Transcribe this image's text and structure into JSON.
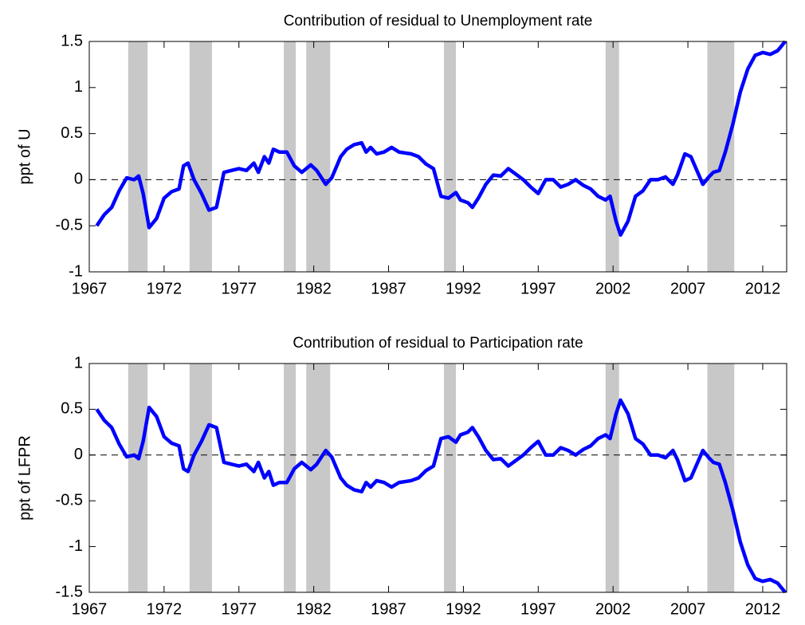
{
  "chart_data": [
    {
      "type": "line",
      "title": "Contribution of residual to Unemployment rate",
      "y_label": "ppt of U",
      "x": [
        1967.5,
        1968,
        1968.5,
        1969,
        1969.5,
        1970,
        1970.3,
        1970.6,
        1971.0,
        1971.5,
        1972,
        1972.5,
        1973,
        1973.3,
        1973.6,
        1974,
        1974.5,
        1975,
        1975.5,
        1976,
        1976.5,
        1977,
        1977.5,
        1978,
        1978.3,
        1978.7,
        1979,
        1979.3,
        1979.7,
        1980.2,
        1980.7,
        1981.2,
        1981.8,
        1982.2,
        1982.8,
        1983.2,
        1983.8,
        1984.2,
        1984.7,
        1985.2,
        1985.5,
        1985.8,
        1986.2,
        1986.7,
        1987.2,
        1987.7,
        1988.5,
        1989,
        1989.5,
        1990,
        1990.5,
        1991,
        1991.5,
        1991.8,
        1992.3,
        1992.6,
        1993,
        1993.5,
        1994,
        1994.5,
        1995,
        1995.5,
        1996,
        1996.5,
        1997,
        1997.5,
        1998,
        1998.5,
        1999,
        1999.5,
        2000,
        2000.5,
        2001,
        2001.5,
        2001.8,
        2002.2,
        2002.5,
        2003,
        2003.5,
        2004,
        2004.5,
        2005,
        2005.5,
        2006,
        2006.3,
        2006.8,
        2007.2,
        2007.6,
        2008,
        2008.4,
        2008.7,
        2009.1,
        2009.5,
        2010,
        2010.5,
        2011,
        2011.5,
        2012,
        2012.5,
        2013,
        2013.5
      ],
      "values": [
        -0.5,
        -0.38,
        -0.3,
        -0.12,
        0.02,
        0.0,
        0.04,
        -0.15,
        -0.52,
        -0.42,
        -0.2,
        -0.13,
        -0.1,
        0.15,
        0.18,
        0.0,
        -0.15,
        -0.33,
        -0.3,
        0.08,
        0.1,
        0.12,
        0.1,
        0.18,
        0.08,
        0.25,
        0.18,
        0.33,
        0.3,
        0.3,
        0.15,
        0.08,
        0.16,
        0.1,
        -0.05,
        0.02,
        0.25,
        0.33,
        0.38,
        0.4,
        0.3,
        0.35,
        0.28,
        0.3,
        0.35,
        0.3,
        0.28,
        0.25,
        0.17,
        0.12,
        -0.18,
        -0.2,
        -0.14,
        -0.22,
        -0.25,
        -0.3,
        -0.2,
        -0.05,
        0.05,
        0.04,
        0.12,
        0.06,
        0.0,
        -0.08,
        -0.15,
        0.0,
        0.0,
        -0.08,
        -0.05,
        0.0,
        -0.06,
        -0.1,
        -0.18,
        -0.22,
        -0.18,
        -0.45,
        -0.6,
        -0.45,
        -0.18,
        -0.12,
        0.0,
        0.0,
        0.03,
        -0.05,
        0.05,
        0.28,
        0.25,
        0.1,
        -0.05,
        0.03,
        0.08,
        0.1,
        0.3,
        0.6,
        0.95,
        1.2,
        1.35,
        1.38,
        1.36,
        1.4,
        1.5
      ],
      "color": "#0000ff",
      "shaded_periods": [
        [
          1969.6,
          1970.9
        ],
        [
          1973.7,
          1975.2
        ],
        [
          1980.0,
          1980.8
        ],
        [
          1981.5,
          1983.1
        ],
        [
          1990.7,
          1991.5
        ],
        [
          2001.5,
          2002.4
        ],
        [
          2008.3,
          2010.1
        ]
      ],
      "shade_color": "#c8c8c8",
      "zero_line": true,
      "xlim": [
        1967,
        2013.6
      ],
      "xticks": [
        1967,
        1972,
        1977,
        1982,
        1987,
        1992,
        1997,
        2002,
        2007,
        2012
      ],
      "ylim": [
        -1,
        1.5
      ],
      "yticks": [
        -1,
        -0.5,
        0,
        0.5,
        1,
        1.5
      ]
    },
    {
      "type": "line",
      "title": "Contribution of residual to Participation rate",
      "y_label": "ppt of LFPR",
      "x": [
        1967.5,
        1968,
        1968.5,
        1969,
        1969.5,
        1970,
        1970.3,
        1970.6,
        1971.0,
        1971.5,
        1972,
        1972.5,
        1973,
        1973.3,
        1973.6,
        1974,
        1974.5,
        1975,
        1975.5,
        1976,
        1976.5,
        1977,
        1977.5,
        1978,
        1978.3,
        1978.7,
        1979,
        1979.3,
        1979.7,
        1980.2,
        1980.7,
        1981.2,
        1981.8,
        1982.2,
        1982.8,
        1983.2,
        1983.8,
        1984.2,
        1984.7,
        1985.2,
        1985.5,
        1985.8,
        1986.2,
        1986.7,
        1987.2,
        1987.7,
        1988.5,
        1989,
        1989.5,
        1990,
        1990.5,
        1991,
        1991.5,
        1991.8,
        1992.3,
        1992.6,
        1993,
        1993.5,
        1994,
        1994.5,
        1995,
        1995.5,
        1996,
        1996.5,
        1997,
        1997.5,
        1998,
        1998.5,
        1999,
        1999.5,
        2000,
        2000.5,
        2001,
        2001.5,
        2001.8,
        2002.2,
        2002.5,
        2003,
        2003.5,
        2004,
        2004.5,
        2005,
        2005.5,
        2006,
        2006.3,
        2006.8,
        2007.2,
        2007.6,
        2008,
        2008.4,
        2008.7,
        2009.1,
        2009.5,
        2010,
        2010.5,
        2011,
        2011.5,
        2012,
        2012.5,
        2013,
        2013.5
      ],
      "values": [
        0.5,
        0.38,
        0.3,
        0.12,
        -0.02,
        0.0,
        -0.04,
        0.15,
        0.52,
        0.42,
        0.2,
        0.13,
        0.1,
        -0.15,
        -0.18,
        0.0,
        0.15,
        0.33,
        0.3,
        -0.08,
        -0.1,
        -0.12,
        -0.1,
        -0.18,
        -0.08,
        -0.25,
        -0.18,
        -0.33,
        -0.3,
        -0.3,
        -0.15,
        -0.08,
        -0.16,
        -0.1,
        0.05,
        -0.02,
        -0.25,
        -0.33,
        -0.38,
        -0.4,
        -0.3,
        -0.35,
        -0.28,
        -0.3,
        -0.35,
        -0.3,
        -0.28,
        -0.25,
        -0.17,
        -0.12,
        0.18,
        0.2,
        0.14,
        0.22,
        0.25,
        0.3,
        0.2,
        0.05,
        -0.05,
        -0.04,
        -0.12,
        -0.06,
        0.0,
        0.08,
        0.15,
        0.0,
        0.0,
        0.08,
        0.05,
        0.0,
        0.06,
        0.1,
        0.18,
        0.22,
        0.18,
        0.45,
        0.6,
        0.45,
        0.18,
        0.12,
        0.0,
        0.0,
        -0.03,
        0.05,
        -0.05,
        -0.28,
        -0.25,
        -0.1,
        0.05,
        -0.03,
        -0.08,
        -0.1,
        -0.3,
        -0.6,
        -0.95,
        -1.2,
        -1.35,
        -1.38,
        -1.36,
        -1.4,
        -1.5
      ],
      "color": "#0000ff",
      "shaded_periods": [
        [
          1969.6,
          1970.9
        ],
        [
          1973.7,
          1975.2
        ],
        [
          1980.0,
          1980.8
        ],
        [
          1981.5,
          1983.1
        ],
        [
          1990.7,
          1991.5
        ],
        [
          2001.5,
          2002.4
        ],
        [
          2008.3,
          2010.1
        ]
      ],
      "shade_color": "#c8c8c8",
      "zero_line": true,
      "xlim": [
        1967,
        2013.6
      ],
      "xticks": [
        1967,
        1972,
        1977,
        1982,
        1987,
        1992,
        1997,
        2002,
        2007,
        2012
      ],
      "ylim": [
        -1.5,
        1
      ],
      "yticks": [
        -1.5,
        -1,
        -0.5,
        0,
        0.5,
        1
      ]
    }
  ]
}
